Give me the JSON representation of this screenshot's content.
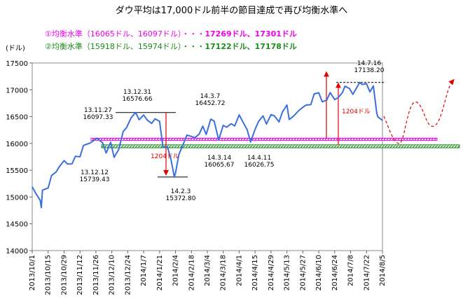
{
  "title": "ダウ平均は17,000ドル前半の節目達成で再び均衡水準へ",
  "legend": {
    "line1_main": "①均衡水準（16065ドル、16097ドル）・・・",
    "line1_bold": "17269ドル、17301ドル",
    "line2_main": "②均衡水準（15918ドル、15974ドル）・・・",
    "line2_bold": "17122ドル、17178ドル"
  },
  "colors": {
    "series": "#3b6fe0",
    "band1": "#ee00ee",
    "band2": "#1a8c1a",
    "arrow": "#e00000",
    "gap_text": "#e00000"
  },
  "chart_data": {
    "type": "line",
    "ylabel": "(ドル)",
    "ylim": [
      14000,
      17500
    ],
    "yticks": [
      14000,
      14500,
      15000,
      15500,
      16000,
      16500,
      17000,
      17500
    ],
    "xtick_labels": [
      "2013/10/1",
      "2013/10/15",
      "2013/10/29",
      "2013/11/12",
      "2013/11/26",
      "2013/12/10",
      "2013/12/24",
      "2014/1/7",
      "2014/1/21",
      "2014/2/4",
      "2014/2/18",
      "2014/3/4",
      "2014/3/18",
      "2014/4/1",
      "2014/4/15",
      "2014/4/29",
      "2014/5/13",
      "2014/5/27",
      "2014/6/10",
      "2014/6/24",
      "2014/7/8",
      "2014/7/22",
      "2014/8/5"
    ],
    "series": [
      {
        "x": [
          "2013/10/1",
          "2013/10/4",
          "2013/10/8",
          "2013/10/9",
          "2013/10/10",
          "2013/10/15",
          "2013/10/18",
          "2013/10/22",
          "2013/10/25",
          "2013/10/29",
          "2013/11/1",
          "2013/11/5",
          "2013/11/8",
          "2013/11/12",
          "2013/11/15",
          "2013/11/21",
          "2013/11/27",
          "2013/12/2",
          "2013/12/5",
          "2013/12/9",
          "2013/12/12",
          "2013/12/16",
          "2013/12/20",
          "2013/12/23",
          "2013/12/27",
          "2013/12/31",
          "2014/1/3",
          "2014/1/7",
          "2014/1/10",
          "2014/1/14",
          "2014/1/17",
          "2014/1/21",
          "2014/1/24",
          "2014/1/28",
          "2014/1/31",
          "2014/2/3",
          "2014/2/4",
          "2014/2/7",
          "2014/2/11",
          "2014/2/14",
          "2014/2/18",
          "2014/2/21",
          "2014/2/25",
          "2014/2/28",
          "2014/3/3",
          "2014/3/7",
          "2014/3/10",
          "2014/3/14",
          "2014/3/18",
          "2014/3/21",
          "2014/3/25",
          "2014/3/28",
          "2014/4/1",
          "2014/4/4",
          "2014/4/8",
          "2014/4/11",
          "2014/4/15",
          "2014/4/18",
          "2014/4/22",
          "2014/4/25",
          "2014/4/29",
          "2014/5/2",
          "2014/5/6",
          "2014/5/9",
          "2014/5/13",
          "2014/5/15",
          "2014/5/19",
          "2014/5/23",
          "2014/5/27",
          "2014/5/30",
          "2014/6/3",
          "2014/6/6",
          "2014/6/10",
          "2014/6/13",
          "2014/6/17",
          "2014/6/20",
          "2014/6/24",
          "2014/6/27",
          "2014/7/1",
          "2014/7/3",
          "2014/7/7",
          "2014/7/10",
          "2014/7/16",
          "2014/7/18",
          "2014/7/22",
          "2014/7/25",
          "2014/7/28",
          "2014/7/31",
          "2014/8/1",
          "2014/8/5"
        ],
        "values": [
          15190,
          15072,
          14936,
          14802,
          15127,
          15168,
          15400,
          15468,
          15571,
          15680,
          15615,
          15618,
          15761,
          15750,
          15962,
          16009,
          16097,
          16008,
          15821,
          16020,
          15739,
          15884,
          16221,
          16294,
          16479,
          16577,
          16441,
          16530,
          16438,
          16373,
          16458,
          16414,
          15930,
          15929,
          15699,
          15373,
          15445,
          15795,
          15994,
          16155,
          16130,
          16104,
          16179,
          16322,
          16168,
          16453,
          16418,
          16066,
          16336,
          16303,
          16368,
          16323,
          16532,
          16412,
          16257,
          16027,
          16263,
          16409,
          16514,
          16361,
          16536,
          16513,
          16401,
          16583,
          16716,
          16446,
          16512,
          16606,
          16675,
          16717,
          16723,
          16924,
          16945,
          16776,
          16809,
          16947,
          16818,
          16852,
          16956,
          17068,
          17024,
          16915,
          17138,
          17101,
          17114,
          16960,
          17073,
          16563,
          16493,
          16430
        ]
      }
    ],
    "bands": [
      {
        "label": "①均衡水準",
        "low": 16065,
        "high": 16097
      },
      {
        "label": "②均衡水準",
        "low": 15918,
        "high": 15974
      }
    ],
    "annotations": [
      {
        "date": "2013/11/27",
        "value": 16097.33,
        "label_date": "13.11.27",
        "label_value": "16097.33"
      },
      {
        "date": "2013/12/12",
        "value": 15739.43,
        "label_date": "13.12.12",
        "label_value": "15739.43"
      },
      {
        "date": "2013/12/31",
        "value": 16576.66,
        "label_date": "13.12.31",
        "label_value": "16576.66"
      },
      {
        "date": "2014/2/3",
        "value": 15372.8,
        "label_date": "14.2.3",
        "label_value": "15372.80"
      },
      {
        "date": "2014/3/7",
        "value": 16452.72,
        "label_date": "14.3.7",
        "label_value": "16452.72"
      },
      {
        "date": "2014/3/14",
        "value": 16065.67,
        "label_date": "14.3.14",
        "label_value": "16065.67"
      },
      {
        "date": "2014/4/11",
        "value": 16026.75,
        "label_date": "14.4.11",
        "label_value": "16026.75"
      },
      {
        "date": "2014/7/16",
        "value": 17138.2,
        "label_date": "14.7.16",
        "label_value": "17138.20"
      }
    ],
    "gap_label": "1204ドル"
  }
}
